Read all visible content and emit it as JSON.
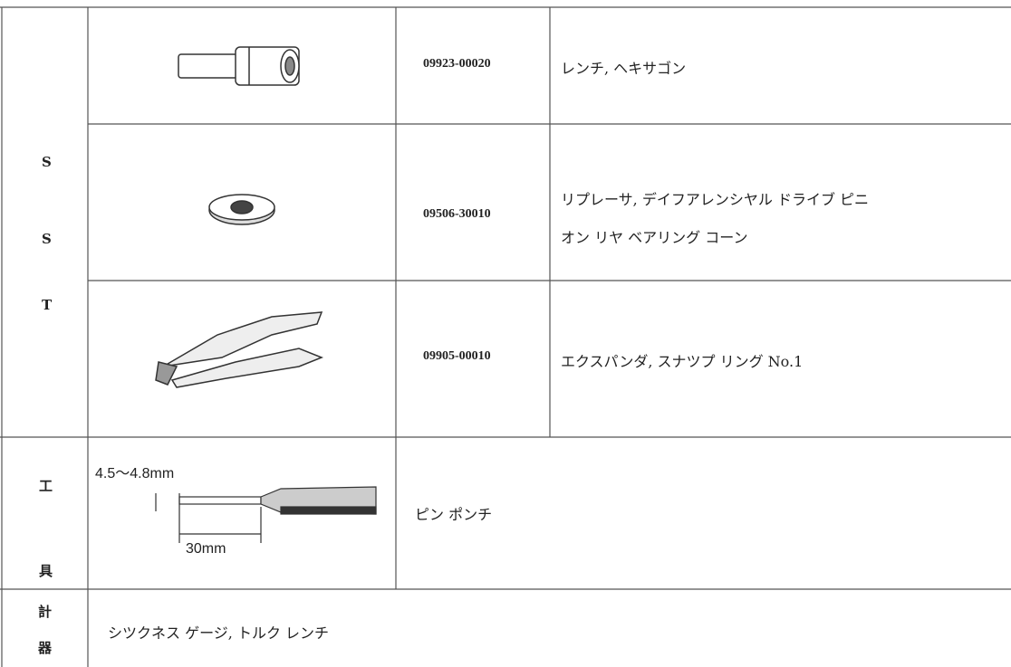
{
  "sst": {
    "labels": [
      "S",
      "S",
      "T"
    ],
    "items": [
      {
        "part_number": "09923-00020",
        "name_lines": [
          "レンチ, ヘキサゴン"
        ]
      },
      {
        "part_number": "09506-30010",
        "name_lines": [
          "リプレーサ, デイフアレンシヤル ドライブ ピニ",
          "オン リヤ ベアリング コーン"
        ]
      },
      {
        "part_number": "09905-00010",
        "name_lines": [
          "エクスパンダ, スナツプ リング No.1"
        ]
      }
    ]
  },
  "tools": {
    "labels": [
      "工",
      "具"
    ],
    "dimension": "4.5～4.8mm",
    "length": "30mm",
    "name": "ピン ポンチ"
  },
  "gauges": {
    "labels": [
      "計",
      "器"
    ],
    "name": "シツクネス ゲージ, トルク レンチ"
  }
}
